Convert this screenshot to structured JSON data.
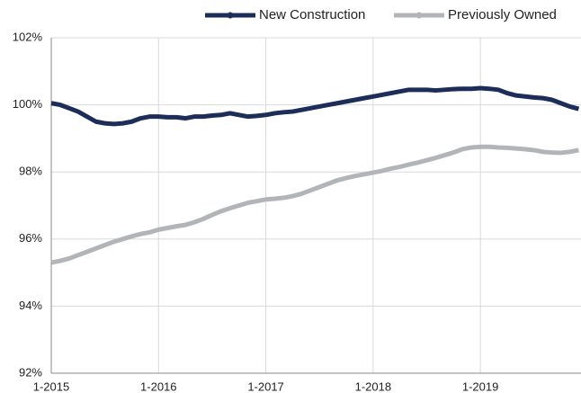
{
  "chart_data": {
    "type": "line",
    "categories": [
      "1-2015",
      null,
      null,
      null,
      null,
      null,
      null,
      null,
      null,
      null,
      null,
      null,
      "1-2016",
      null,
      null,
      null,
      null,
      null,
      null,
      null,
      null,
      null,
      null,
      null,
      "1-2017",
      null,
      null,
      null,
      null,
      null,
      null,
      null,
      null,
      null,
      null,
      null,
      "1-2018",
      null,
      null,
      null,
      null,
      null,
      null,
      null,
      null,
      null,
      null,
      null,
      "1-2019",
      null,
      null,
      null,
      null,
      null,
      null,
      null,
      null,
      null,
      null,
      null
    ],
    "series": [
      {
        "name": "New Construction",
        "color": "#1c2d5a",
        "values": [
          100.05,
          100.0,
          99.9,
          99.8,
          99.65,
          99.5,
          99.45,
          99.43,
          99.45,
          99.5,
          99.6,
          99.65,
          99.65,
          99.63,
          99.63,
          99.6,
          99.65,
          99.65,
          99.68,
          99.7,
          99.75,
          99.7,
          99.65,
          99.67,
          99.7,
          99.75,
          99.78,
          99.8,
          99.85,
          99.9,
          99.95,
          100.0,
          100.05,
          100.1,
          100.15,
          100.2,
          100.25,
          100.3,
          100.35,
          100.4,
          100.45,
          100.45,
          100.45,
          100.43,
          100.45,
          100.47,
          100.48,
          100.48,
          100.5,
          100.48,
          100.45,
          100.35,
          100.28,
          100.25,
          100.22,
          100.2,
          100.15,
          100.05,
          99.95,
          99.88
        ]
      },
      {
        "name": "Previously Owned",
        "color": "#b2b5b8",
        "values": [
          95.3,
          95.35,
          95.42,
          95.52,
          95.62,
          95.72,
          95.82,
          95.92,
          96.0,
          96.08,
          96.15,
          96.2,
          96.28,
          96.33,
          96.38,
          96.42,
          96.5,
          96.6,
          96.72,
          96.83,
          96.92,
          97.0,
          97.08,
          97.13,
          97.18,
          97.2,
          97.23,
          97.28,
          97.35,
          97.45,
          97.55,
          97.65,
          97.75,
          97.82,
          97.88,
          97.93,
          97.98,
          98.03,
          98.1,
          98.15,
          98.22,
          98.28,
          98.35,
          98.42,
          98.5,
          98.58,
          98.68,
          98.73,
          98.75,
          98.75,
          98.73,
          98.72,
          98.7,
          98.68,
          98.65,
          98.6,
          98.58,
          98.57,
          98.6,
          98.65
        ]
      }
    ],
    "ylim": [
      92,
      102
    ],
    "yticks": [
      {
        "value": 92,
        "label": "92%"
      },
      {
        "value": 94,
        "label": "94%"
      },
      {
        "value": 96,
        "label": "96%"
      },
      {
        "value": 98,
        "label": "98%"
      },
      {
        "value": 100,
        "label": "100%"
      },
      {
        "value": 102,
        "label": "102%"
      }
    ],
    "grid": true,
    "legend": "top-right"
  }
}
